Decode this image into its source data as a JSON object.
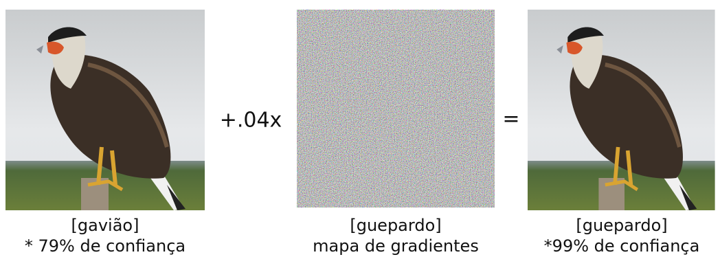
{
  "panels": [
    {
      "label": "[gavião]",
      "caption": "* 79% de confiança"
    },
    {
      "label": "[guepardo]",
      "caption": "mapa de gradientes"
    },
    {
      "label": "[guepardo]",
      "caption": "*99% de confiança"
    }
  ],
  "operators": {
    "plus": "+.04x",
    "equals": "="
  }
}
